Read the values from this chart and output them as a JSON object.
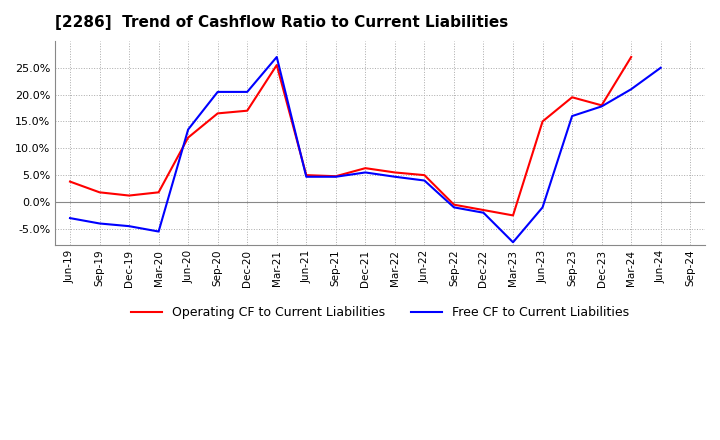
{
  "title": "[2286]  Trend of Cashflow Ratio to Current Liabilities",
  "x_labels": [
    "Jun-19",
    "Sep-19",
    "Dec-19",
    "Mar-20",
    "Jun-20",
    "Sep-20",
    "Dec-20",
    "Mar-21",
    "Jun-21",
    "Sep-21",
    "Dec-21",
    "Mar-22",
    "Jun-22",
    "Sep-22",
    "Dec-22",
    "Mar-23",
    "Jun-23",
    "Sep-23",
    "Dec-23",
    "Mar-24",
    "Jun-24",
    "Sep-24"
  ],
  "operating_cf": [
    0.038,
    0.018,
    0.012,
    0.018,
    0.12,
    0.165,
    0.17,
    0.255,
    0.05,
    0.048,
    0.063,
    0.055,
    0.05,
    -0.005,
    -0.015,
    -0.025,
    0.15,
    0.195,
    0.18,
    0.27,
    null,
    null
  ],
  "free_cf": [
    -0.03,
    -0.04,
    -0.045,
    -0.055,
    0.135,
    0.205,
    0.205,
    0.27,
    0.047,
    0.047,
    0.055,
    0.047,
    0.04,
    -0.01,
    -0.02,
    -0.075,
    -0.01,
    0.16,
    0.178,
    0.21,
    0.25,
    null
  ],
  "ylim": [
    -0.08,
    0.3
  ],
  "yticks": [
    -0.05,
    0.0,
    0.05,
    0.1,
    0.15,
    0.2,
    0.25
  ],
  "operating_color": "#ff0000",
  "free_color": "#0000ff",
  "background_color": "#ffffff",
  "grid_color": "#aaaaaa",
  "zero_line_color": "#888888",
  "legend_operating": "Operating CF to Current Liabilities",
  "legend_free": "Free CF to Current Liabilities"
}
